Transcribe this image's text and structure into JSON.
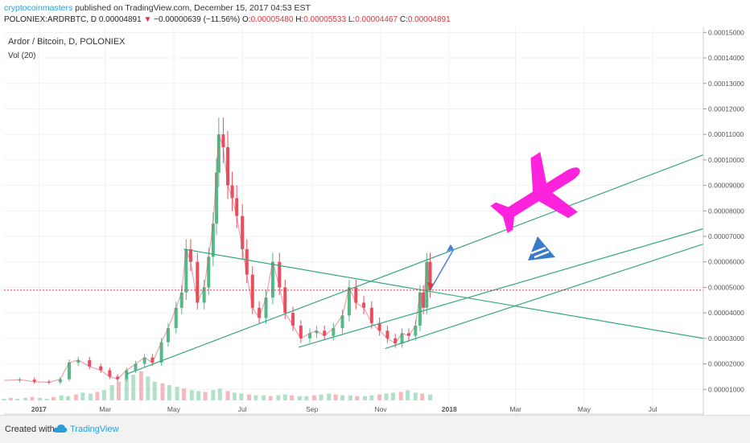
{
  "header": {
    "author": "cryptocoinmasters",
    "published": " published on TradingView.com, December 15, 2017 04:53 EST",
    "symbol": "POLONIEX:ARDRBTC, D",
    "last": "0.00004891",
    "change_arrow": "▼",
    "change": "−0.00000639 (−11.56%)",
    "o_label": "O:",
    "o_value": "0.00005480",
    "h_label": "H:",
    "h_value": "0.00005533",
    "l_label": "L:",
    "l_value": "0.00004467",
    "c_label": "C:",
    "c_value": "0.00004891"
  },
  "footer": {
    "created_with": "Created with",
    "brand": "TradingView"
  },
  "colors": {
    "up": "#53b987",
    "down": "#eb4d5c",
    "trendline": "#35a683",
    "price_line": "#e0353b",
    "airplane": "#ff22dd",
    "logo": "#3a7bc8",
    "arrow_up": "#4a7fd6",
    "arrow_down": "#e0353b",
    "ma": "#f7a35c"
  },
  "icons": [
    "airplane-icon",
    "logo-icon"
  ],
  "chart_data": {
    "type": "candlestick",
    "title": "Ardor / Bitcoin, D, POLONIEX",
    "indicator_label": "Vol (20)",
    "x_ticks": [
      "2017",
      "Mar",
      "May",
      "Jul",
      "Sep",
      "Nov",
      "2018",
      "Mar",
      "May",
      "Jul"
    ],
    "y_ticks": [
      "0.00015000",
      "0.00014000",
      "0.00013000",
      "0.00012000",
      "0.00011000",
      "0.00010000",
      "0.00009000",
      "0.00008000",
      "0.00007000",
      "0.00006000",
      "0.00005000",
      "0.00004000",
      "0.00003000",
      "0.00002000",
      "0.00001000"
    ],
    "y_range": [
      0.0,
      0.000152
    ],
    "x_range": [
      "2016-12-01",
      "2018-08-15"
    ],
    "current_price_label": "0.00004891",
    "current_price": 4.891e-05,
    "price_series": [
      [
        "2016-12-01",
        1.35e-05
      ],
      [
        "2016-12-15",
        1.38e-05
      ],
      [
        "2016-12-28",
        1.3e-05
      ],
      [
        "2017-01-10",
        1.28e-05
      ],
      [
        "2017-01-20",
        1.4e-05
      ],
      [
        "2017-01-28",
        2.05e-05
      ],
      [
        "2017-02-05",
        2.15e-05
      ],
      [
        "2017-02-15",
        1.9e-05
      ],
      [
        "2017-02-25",
        1.75e-05
      ],
      [
        "2017-03-05",
        1.5e-05
      ],
      [
        "2017-03-12",
        1.4e-05
      ],
      [
        "2017-03-20",
        1.75e-05
      ],
      [
        "2017-03-28",
        2e-05
      ],
      [
        "2017-04-05",
        2.25e-05
      ],
      [
        "2017-04-12",
        2.05e-05
      ],
      [
        "2017-04-20",
        2.85e-05
      ],
      [
        "2017-04-26",
        3.4e-05
      ],
      [
        "2017-05-03",
        4.2e-05
      ],
      [
        "2017-05-08",
        4.8e-05
      ],
      [
        "2017-05-12",
        6.5e-05
      ],
      [
        "2017-05-16",
        6e-05
      ],
      [
        "2017-05-22",
        4.4e-05
      ],
      [
        "2017-05-28",
        5e-05
      ],
      [
        "2017-06-01",
        6.2e-05
      ],
      [
        "2017-06-05",
        7.5e-05
      ],
      [
        "2017-06-08",
        9.5e-05
      ],
      [
        "2017-06-10",
        0.00011
      ],
      [
        "2017-06-14",
        0.000105
      ],
      [
        "2017-06-18",
        9e-05
      ],
      [
        "2017-06-22",
        8.5e-05
      ],
      [
        "2017-06-26",
        7.8e-05
      ],
      [
        "2017-07-01",
        6.5e-05
      ],
      [
        "2017-07-05",
        5.5e-05
      ],
      [
        "2017-07-10",
        4.2e-05
      ],
      [
        "2017-07-16",
        3.8e-05
      ],
      [
        "2017-07-22",
        4.6e-05
      ],
      [
        "2017-07-28",
        6e-05
      ],
      [
        "2017-08-03",
        5e-05
      ],
      [
        "2017-08-08",
        4e-05
      ],
      [
        "2017-08-15",
        3.5e-05
      ],
      [
        "2017-08-22",
        3e-05
      ],
      [
        "2017-08-30",
        3.2e-05
      ],
      [
        "2017-09-05",
        3.3e-05
      ],
      [
        "2017-09-12",
        3.1e-05
      ],
      [
        "2017-09-20",
        3.4e-05
      ],
      [
        "2017-09-28",
        3.9e-05
      ],
      [
        "2017-10-04",
        5e-05
      ],
      [
        "2017-10-10",
        4.4e-05
      ],
      [
        "2017-10-17",
        4.2e-05
      ],
      [
        "2017-10-24",
        3.6e-05
      ],
      [
        "2017-10-31",
        3.3e-05
      ],
      [
        "2017-11-07",
        3e-05
      ],
      [
        "2017-11-14",
        2.8e-05
      ],
      [
        "2017-11-20",
        3.2e-05
      ],
      [
        "2017-11-26",
        3.1e-05
      ],
      [
        "2017-12-02",
        3.5e-05
      ],
      [
        "2017-12-06",
        4.8e-05
      ],
      [
        "2017-12-09",
        4.2e-05
      ],
      [
        "2017-12-12",
        6e-05
      ],
      [
        "2017-12-15",
        4.89e-05
      ]
    ],
    "projection_arrow": {
      "from": [
        "2017-12-15",
        4.89e-05
      ],
      "to": [
        "2018-01-05",
        6.5e-05
      ]
    },
    "trendlines": [
      {
        "name": "upper-channel",
        "from": [
          "2017-03-20",
          1.6e-05
        ],
        "to": [
          "2018-08-15",
          0.000102
        ]
      },
      {
        "name": "middle-channel",
        "from": [
          "2017-08-20",
          2.65e-05
        ],
        "to": [
          "2018-08-15",
          7.3e-05
        ]
      },
      {
        "name": "lower-channel",
        "from": [
          "2017-11-05",
          2.6e-05
        ],
        "to": [
          "2018-08-15",
          6.7e-05
        ]
      },
      {
        "name": "descending",
        "from": [
          "2017-05-10",
          6.5e-05
        ],
        "to": [
          "2018-08-15",
          3e-05
        ]
      }
    ],
    "volume_series": [
      2,
      3,
      2,
      3,
      4,
      3,
      2,
      4,
      6,
      5,
      7,
      9,
      8,
      10,
      12,
      18,
      22,
      26,
      30,
      34,
      28,
      22,
      20,
      18,
      16,
      14,
      12,
      11,
      10,
      12,
      14,
      11,
      9,
      8,
      7,
      6,
      6,
      5,
      6,
      7,
      6,
      5,
      5,
      6,
      7,
      8,
      7,
      6,
      6,
      5,
      5,
      6,
      7,
      8,
      9,
      10,
      12,
      9,
      8,
      7
    ],
    "grid": true,
    "legend": "top-left"
  }
}
